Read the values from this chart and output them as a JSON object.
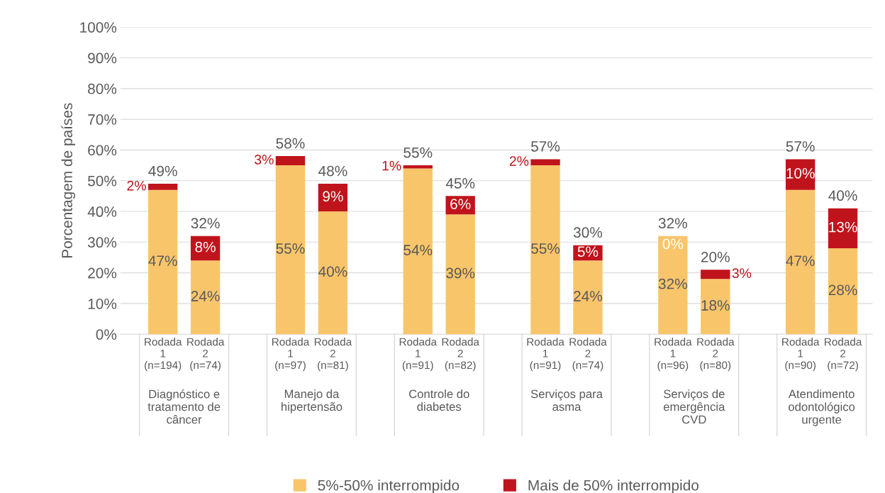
{
  "chart_data": {
    "type": "bar",
    "stacked": true,
    "ylabel": "Porcentagem de países",
    "categories": [
      "Rodada\n1\n(n=194)",
      "Rodada\n2\n(n=74)",
      null,
      "Rodada\n1\n(n=97)",
      "Rodada\n2\n(n=81)",
      null,
      "Rodada\n1\n(n=91)",
      "Rodada\n2\n(n=82)",
      null,
      "Rodada\n1\n(n=91)",
      "Rodada\n2\n(n=74)",
      null,
      "Rodada\n1\n(n=96)",
      "Rodada\n2\n(n=80)",
      null,
      "Rodada\n1\n(n=90)",
      "Rodada\n2\n(n=72)"
    ],
    "series": [
      {
        "name": "5%-50% interrompido",
        "color": "#f9c56b",
        "values": [
          47,
          24,
          null,
          55,
          40,
          null,
          54,
          39,
          null,
          55,
          24,
          null,
          32,
          18,
          null,
          47,
          28
        ],
        "value_labels": [
          "47%",
          "24%",
          null,
          "55%",
          "40%",
          null,
          "54%",
          "39%",
          null,
          "55%",
          "24%",
          null,
          "32%",
          "18%",
          null,
          "47%",
          "28%"
        ]
      },
      {
        "name": "Mais de 50% interrompido",
        "color": "#c0141c",
        "values": [
          2,
          8,
          null,
          3,
          9,
          null,
          1,
          6,
          null,
          2,
          5,
          null,
          0,
          3,
          null,
          10,
          13
        ],
        "value_labels": [
          "2%",
          "8%",
          null,
          "3%",
          "9%",
          null,
          "1%",
          "6%",
          null,
          "2%",
          "5%",
          null,
          "0%",
          "3%",
          null,
          "10%",
          "13%"
        ]
      }
    ],
    "totals": [
      "49%",
      "32%",
      null,
      "58%",
      "48%",
      null,
      "55%",
      "45%",
      null,
      "57%",
      "30%",
      null,
      "32%",
      "20%",
      null,
      "57%",
      "40%"
    ],
    "annotations": [
      "Diagnóstico e\ntratamento de\ncâncer",
      "Manejo da\nhipertensão",
      "Controle do\ndiabetes",
      "Serviços para\nasma",
      "Serviços de\nemergência\nCVD",
      "Atendimento\nodontológico\nurgente"
    ],
    "ylim": [
      0,
      100
    ],
    "yticks": [
      {
        "value": 0,
        "label": "0%"
      },
      {
        "value": 10,
        "label": "10%"
      },
      {
        "value": 20,
        "label": "20%"
      },
      {
        "value": 30,
        "label": "30%"
      },
      {
        "value": 40,
        "label": "40%"
      },
      {
        "value": 50,
        "label": "50%"
      },
      {
        "value": 60,
        "label": "60%"
      },
      {
        "value": 70,
        "label": "70%"
      },
      {
        "value": 80,
        "label": "80%"
      },
      {
        "value": 90,
        "label": "90%"
      },
      {
        "value": 100,
        "label": "100%"
      }
    ],
    "grid": "y",
    "legend": "bottom"
  }
}
